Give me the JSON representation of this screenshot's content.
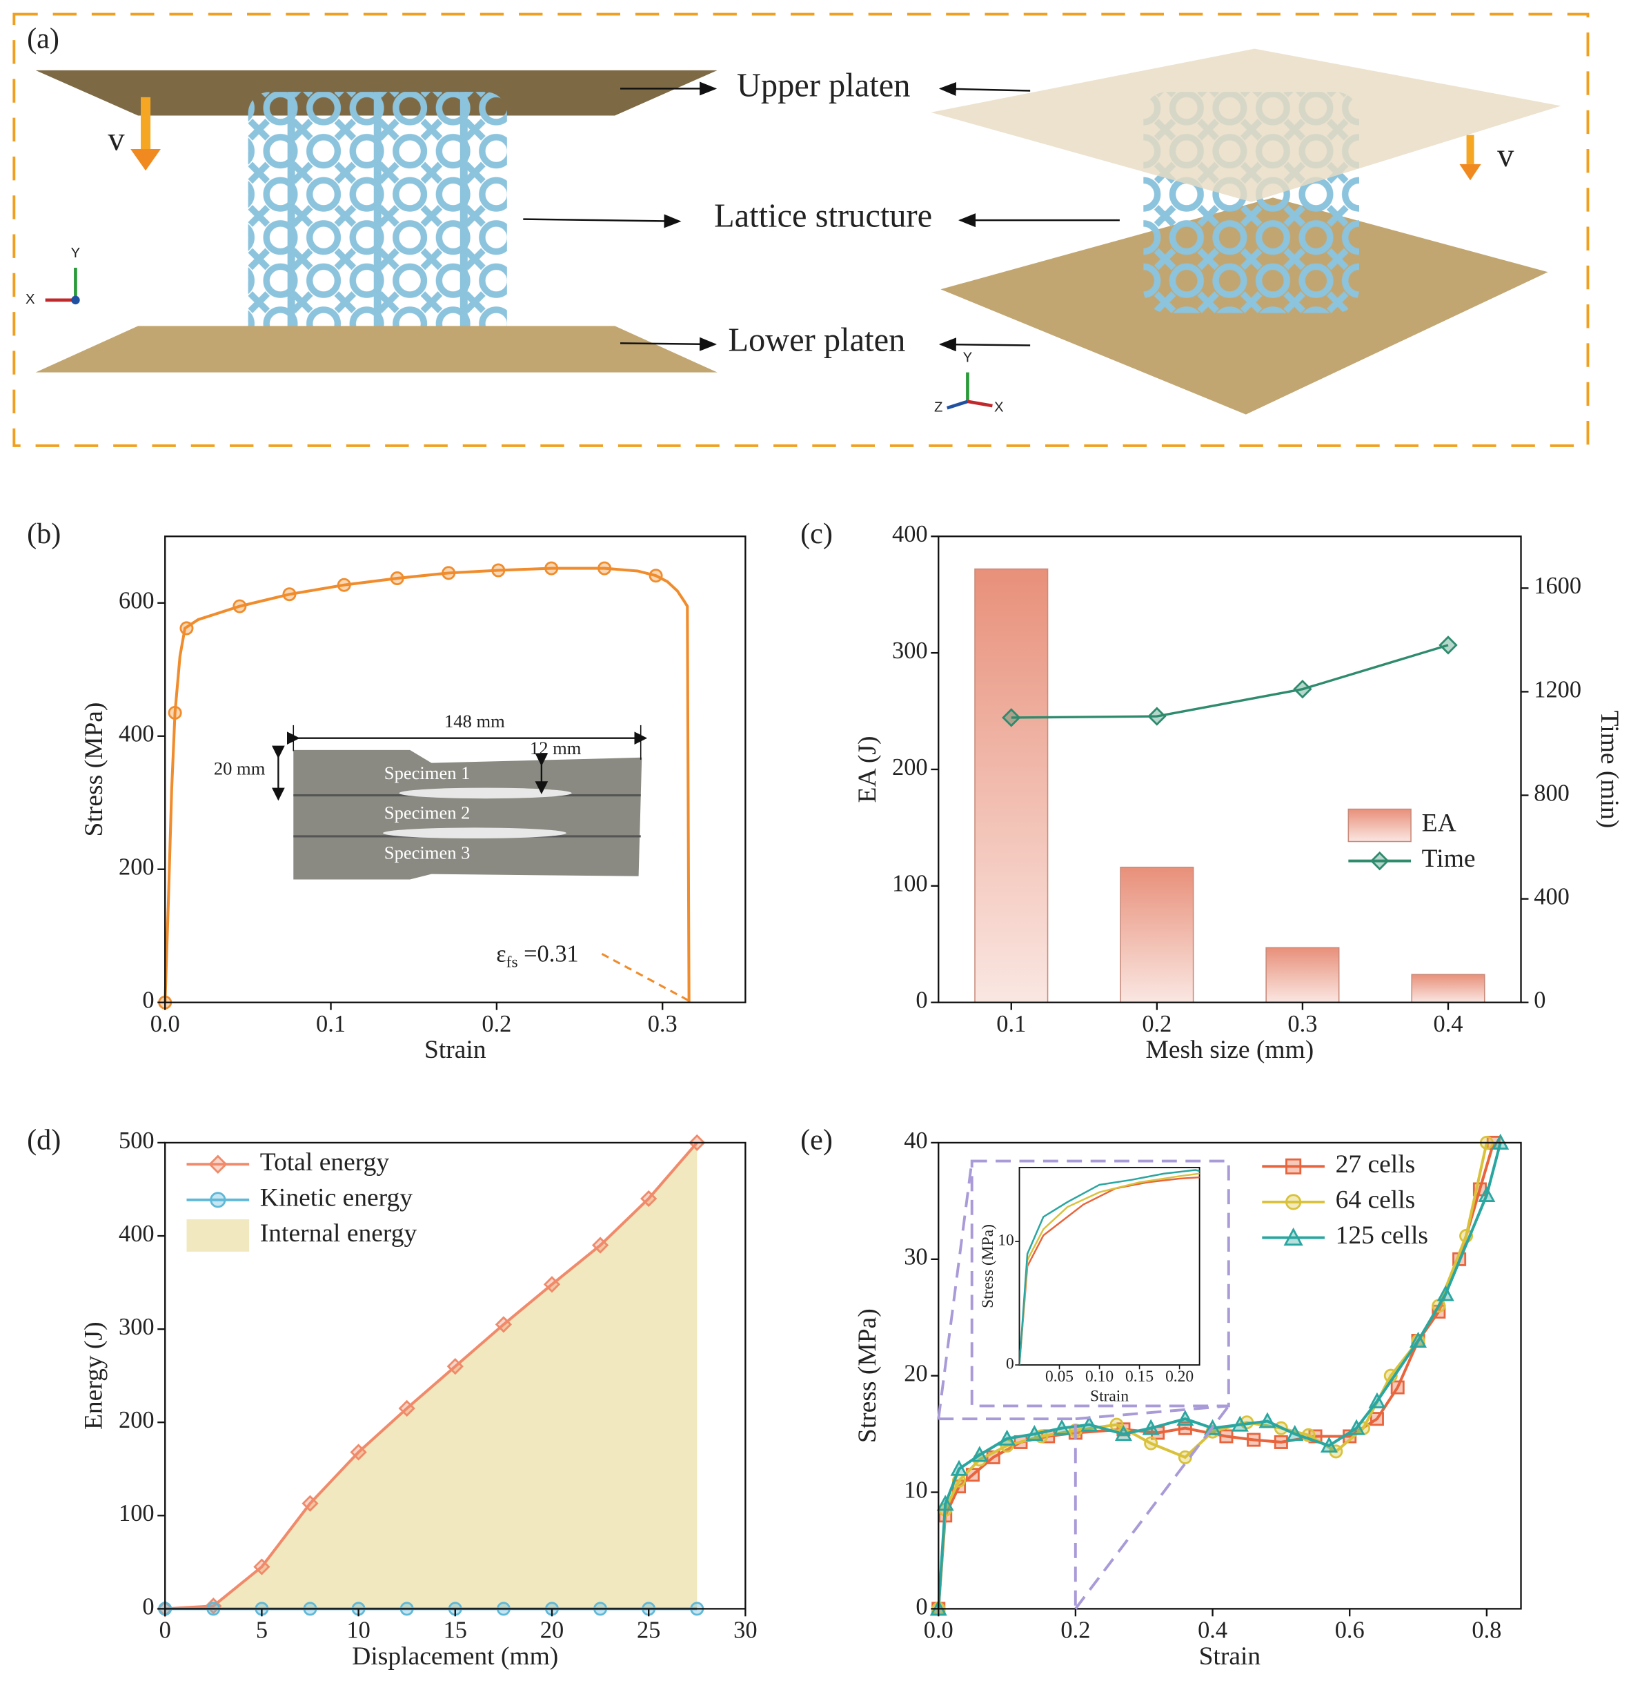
{
  "diagram": {
    "panel": "(a)",
    "upper": "Upper platen",
    "lattice": "Lattice structure",
    "lower": "Lower platen",
    "velocity": [
      "v",
      "v"
    ],
    "axes_left": [
      "Y",
      "X"
    ],
    "axes_right": [
      "Y",
      "Z",
      "X"
    ]
  },
  "chart_data": [
    {
      "type": "line",
      "panel": "(b)",
      "xlabel": "Strain",
      "ylabel": "Stress (MPa)",
      "xlim": [
        0,
        0.35
      ],
      "ylim": [
        0,
        700
      ],
      "xticks": [
        {
          "value": 0,
          "label": "0.0"
        },
        0.1,
        0.2,
        0.3
      ],
      "yticks": [
        0,
        200,
        400,
        600
      ],
      "series": [
        {
          "color": "#f08c2c",
          "line": true,
          "marker": "none",
          "x": [
            0,
            0.002,
            0.004,
            0.006,
            0.009,
            0.012,
            0.02,
            0.045,
            0.075,
            0.108,
            0.14,
            0.171,
            0.201,
            0.233,
            0.265,
            0.285,
            0.296,
            0.303,
            0.309,
            0.313,
            0.315,
            0.316
          ],
          "values": [
            0,
            150,
            320,
            435,
            520,
            562,
            575,
            595,
            613,
            627,
            637,
            645,
            649,
            652,
            652,
            648,
            641,
            632,
            618,
            603,
            595,
            0
          ]
        },
        {
          "color": "#f08c2c",
          "line": false,
          "marker": "circle",
          "x": [
            0,
            0.006,
            0.013,
            0.045,
            0.075,
            0.108,
            0.14,
            0.171,
            0.201,
            0.233,
            0.265,
            0.296
          ],
          "values": [
            0,
            435,
            562,
            595,
            613,
            627,
            637,
            645,
            649,
            652,
            652,
            641
          ]
        }
      ],
      "inset": {
        "length": "148 mm",
        "width": "12 mm",
        "grip": "20 mm",
        "specimens": [
          "Specimen 1",
          "Specimen 2",
          "Specimen 3"
        ]
      },
      "annotation": {
        "symbol": "ε",
        "sub": "fs",
        "text": " =0.31"
      }
    },
    {
      "type": "bar",
      "panel": "(c)",
      "xlabel": "Mesh size (mm)",
      "ylabel": "EA (J)",
      "y2label": "Time (min)",
      "categories": [
        "0.1",
        "0.2",
        "0.3",
        "0.4"
      ],
      "ylim": [
        0,
        400
      ],
      "yticks": [
        0,
        100,
        200,
        300,
        400
      ],
      "y2lim": [
        0,
        1800
      ],
      "y2ticks": [
        0,
        400,
        800,
        1200,
        1600
      ],
      "legend": "center right",
      "series": [
        {
          "name": "EA",
          "color": "#e8907a",
          "values": [
            372,
            116,
            47,
            24
          ]
        },
        {
          "name": "Time",
          "color": "#2e8b6e",
          "axis": "y2",
          "marker": "diamond",
          "values": [
            1100,
            1105,
            1210,
            1380
          ]
        }
      ]
    },
    {
      "type": "line",
      "panel": "(d)",
      "xlabel": "Displacement (mm)",
      "ylabel": "Energy (J)",
      "xlim": [
        0,
        30
      ],
      "ylim": [
        0,
        500
      ],
      "xticks": [
        0,
        5,
        10,
        15,
        20,
        25,
        30
      ],
      "yticks": [
        0,
        100,
        200,
        300,
        400,
        500
      ],
      "legend": "upper left",
      "x": [
        0,
        2.5,
        5,
        7.5,
        10,
        12.5,
        15,
        17.5,
        20,
        22.5,
        25,
        27.5
      ],
      "series": [
        {
          "name": "Total energy",
          "color": "#f08a6a",
          "marker": "diamond",
          "values": [
            0,
            3,
            45,
            113,
            168,
            215,
            260,
            305,
            348,
            390,
            440,
            500
          ]
        },
        {
          "name": "Kinetic energy",
          "color": "#5fb8d8",
          "marker": "circle",
          "values": [
            0,
            0,
            0,
            0,
            0,
            0,
            0,
            0,
            0,
            0,
            0,
            0
          ]
        },
        {
          "name": "Internal energy",
          "color": "#f2e8bf",
          "style": "area",
          "values": [
            0,
            3,
            45,
            113,
            168,
            215,
            260,
            305,
            348,
            390,
            440,
            500
          ]
        }
      ]
    },
    {
      "type": "line",
      "panel": "(e)",
      "xlabel": "Strain",
      "ylabel": "Stress (MPa)",
      "xlim": [
        0,
        0.85
      ],
      "ylim": [
        0,
        40
      ],
      "xticks": [
        {
          "value": 0,
          "label": "0.0"
        },
        0.2,
        0.4,
        0.6,
        0.8
      ],
      "yticks": [
        0,
        10,
        20,
        30,
        40
      ],
      "legend": "upper right",
      "series": [
        {
          "name": "27 cells",
          "color": "#e8643c",
          "marker": "square",
          "x": [
            0,
            0.01,
            0.03,
            0.05,
            0.08,
            0.12,
            0.16,
            0.2,
            0.27,
            0.32,
            0.36,
            0.42,
            0.46,
            0.5,
            0.55,
            0.6,
            0.64,
            0.67,
            0.7,
            0.73,
            0.76,
            0.79,
            0.81
          ],
          "values": [
            0,
            8,
            10.5,
            11.5,
            13,
            14.3,
            14.8,
            15.1,
            15.4,
            15.1,
            15.5,
            14.8,
            14.5,
            14.3,
            14.8,
            14.8,
            16.3,
            19,
            23,
            25.5,
            30,
            36,
            40
          ]
        },
        {
          "name": "64 cells",
          "color": "#d9c23a",
          "marker": "circle",
          "x": [
            0,
            0.01,
            0.03,
            0.06,
            0.1,
            0.15,
            0.2,
            0.26,
            0.31,
            0.36,
            0.4,
            0.45,
            0.5,
            0.54,
            0.58,
            0.62,
            0.66,
            0.7,
            0.73,
            0.77,
            0.8
          ],
          "values": [
            0,
            8.5,
            11,
            12.8,
            14,
            14.8,
            15.3,
            15.8,
            14.2,
            13,
            15.2,
            16,
            15.5,
            14.9,
            13.5,
            15.5,
            20,
            23,
            26,
            32,
            40
          ]
        },
        {
          "name": "125 cells",
          "color": "#2aa6a0",
          "marker": "triangle",
          "x": [
            0,
            0.01,
            0.03,
            0.06,
            0.1,
            0.14,
            0.18,
            0.22,
            0.27,
            0.31,
            0.36,
            0.4,
            0.44,
            0.48,
            0.52,
            0.57,
            0.61,
            0.64,
            0.7,
            0.74,
            0.8,
            0.82
          ],
          "values": [
            0,
            9,
            12,
            13.2,
            14.6,
            15,
            15.5,
            15.8,
            15,
            15.5,
            16.3,
            15.5,
            15.8,
            16.1,
            15,
            14,
            15.5,
            17.8,
            23,
            27,
            35.5,
            40
          ]
        }
      ],
      "inset": {
        "xlabel": "Strain",
        "ylabel": "Stress (MPa)",
        "xlim": [
          0,
          0.225
        ],
        "ylim": [
          0,
          16
        ],
        "xticks": [
          {
            "value": 0.05,
            "label": "0.05"
          },
          {
            "value": 0.1,
            "label": "0.10"
          },
          {
            "value": 0.15,
            "label": "0.15"
          },
          {
            "value": 0.2,
            "label": "0.20"
          }
        ],
        "yticks": [
          0,
          10
        ]
      }
    }
  ]
}
